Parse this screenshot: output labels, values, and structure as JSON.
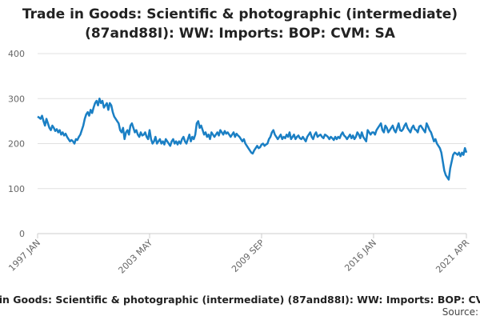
{
  "chart_data": {
    "type": "line",
    "title": "Trade in Goods: Scientific & photographic (intermediate) (87and88I): WW: Imports: BOP: CVM: SA",
    "source_label": "Source:",
    "color": "#1a7fc4",
    "ylim": [
      0,
      400
    ],
    "yticks": [
      0,
      100,
      200,
      300,
      400
    ],
    "grid": true,
    "categories": [
      "1997 JAN",
      null,
      null,
      null,
      null,
      null,
      null,
      null,
      null,
      null,
      null,
      null,
      null,
      null,
      null,
      null,
      null,
      null,
      null,
      null,
      null,
      null,
      null,
      null,
      null,
      null,
      null,
      null,
      null,
      null,
      null,
      null,
      null,
      null,
      null,
      null,
      null,
      null,
      null,
      null,
      null,
      null,
      null,
      null,
      null,
      null,
      null,
      null,
      null,
      null,
      null,
      null,
      null,
      null,
      null,
      null,
      null,
      null,
      null,
      null,
      null,
      null,
      null,
      null,
      null,
      null,
      null,
      null,
      null,
      null,
      null,
      null,
      null,
      null,
      null,
      null,
      "2003 MAY",
      null,
      null,
      null,
      null,
      null,
      null,
      null,
      null,
      null,
      null,
      null,
      null,
      null,
      null,
      null,
      null,
      null,
      null,
      null,
      null,
      null,
      null,
      null,
      null,
      null,
      null,
      null,
      null,
      null,
      null,
      null,
      null,
      null,
      null,
      null,
      null,
      null,
      null,
      null,
      null,
      null,
      null,
      null,
      null,
      null,
      null,
      null,
      null,
      null,
      null,
      null,
      null,
      null,
      null,
      null,
      null,
      null,
      null,
      null,
      null,
      null,
      null,
      null,
      null,
      null,
      null,
      null,
      null,
      null,
      null,
      null,
      null,
      null,
      null,
      null,
      "2009 SEP",
      null,
      null,
      null,
      null,
      null,
      null,
      null,
      null,
      null,
      null,
      null,
      null,
      null,
      null,
      null,
      null,
      null,
      null,
      null,
      null,
      null,
      null,
      null,
      null,
      null,
      null,
      null,
      null,
      null,
      null,
      null,
      null,
      null,
      null,
      null,
      null,
      null,
      null,
      null,
      null,
      null,
      null,
      null,
      null,
      null,
      null,
      null,
      null,
      null,
      null,
      null,
      null,
      null,
      null,
      null,
      null,
      null,
      null,
      null,
      null,
      null,
      null,
      null,
      null,
      null,
      null,
      null,
      null,
      null,
      null,
      null,
      null,
      null,
      null,
      null,
      "2016 JAN",
      null,
      null,
      null,
      null,
      null,
      null,
      null,
      null,
      null,
      null,
      null,
      null,
      null,
      null,
      null,
      null,
      null,
      null,
      null,
      null,
      null,
      null,
      null,
      null,
      null,
      null,
      null,
      null,
      null,
      null,
      null,
      null,
      null,
      null,
      null,
      null,
      null,
      null,
      null,
      null,
      null,
      null,
      null,
      null,
      null,
      null,
      null,
      null,
      null,
      null,
      null,
      null,
      null,
      null,
      null,
      null,
      null,
      null,
      null,
      null,
      null,
      null,
      "2021 APR"
    ],
    "values": [
      260,
      258,
      255,
      262,
      250,
      240,
      255,
      245,
      235,
      230,
      240,
      235,
      228,
      232,
      225,
      230,
      220,
      225,
      218,
      222,
      215,
      210,
      205,
      208,
      205,
      200,
      210,
      208,
      215,
      220,
      230,
      240,
      255,
      265,
      270,
      262,
      275,
      268,
      280,
      290,
      295,
      285,
      300,
      290,
      295,
      280,
      285,
      290,
      275,
      290,
      285,
      270,
      260,
      255,
      250,
      245,
      230,
      225,
      235,
      210,
      225,
      230,
      220,
      240,
      245,
      235,
      225,
      230,
      220,
      215,
      225,
      218,
      220,
      225,
      215,
      210,
      230,
      210,
      200,
      205,
      215,
      200,
      205,
      210,
      200,
      205,
      198,
      210,
      205,
      200,
      195,
      205,
      210,
      200,
      205,
      198,
      205,
      200,
      210,
      215,
      205,
      200,
      210,
      220,
      205,
      215,
      210,
      220,
      245,
      250,
      235,
      240,
      230,
      220,
      225,
      215,
      220,
      210,
      225,
      220,
      215,
      220,
      225,
      218,
      230,
      225,
      220,
      228,
      222,
      225,
      220,
      215,
      220,
      225,
      215,
      222,
      218,
      215,
      210,
      205,
      210,
      200,
      195,
      190,
      185,
      180,
      178,
      185,
      190,
      195,
      190,
      192,
      198,
      200,
      195,
      198,
      200,
      210,
      215,
      225,
      230,
      220,
      215,
      210,
      215,
      220,
      210,
      215,
      212,
      220,
      215,
      225,
      210,
      215,
      220,
      210,
      215,
      218,
      212,
      210,
      215,
      210,
      205,
      215,
      220,
      225,
      215,
      210,
      220,
      225,
      215,
      218,
      220,
      215,
      212,
      220,
      218,
      215,
      210,
      215,
      212,
      208,
      215,
      210,
      215,
      212,
      220,
      225,
      218,
      215,
      210,
      215,
      220,
      212,
      218,
      210,
      215,
      225,
      220,
      212,
      225,
      215,
      210,
      205,
      230,
      225,
      220,
      225,
      225,
      220,
      230,
      235,
      240,
      245,
      230,
      225,
      240,
      235,
      225,
      230,
      235,
      240,
      230,
      225,
      235,
      245,
      230,
      228,
      232,
      240,
      245,
      235,
      230,
      225,
      235,
      240,
      232,
      230,
      225,
      238,
      240,
      235,
      230,
      225,
      245,
      238,
      230,
      225,
      215,
      205,
      210,
      200,
      195,
      190,
      180,
      160,
      140,
      130,
      125,
      120,
      145,
      160,
      175,
      180,
      178,
      175,
      180,
      172,
      180,
      175,
      190,
      180
    ]
  }
}
